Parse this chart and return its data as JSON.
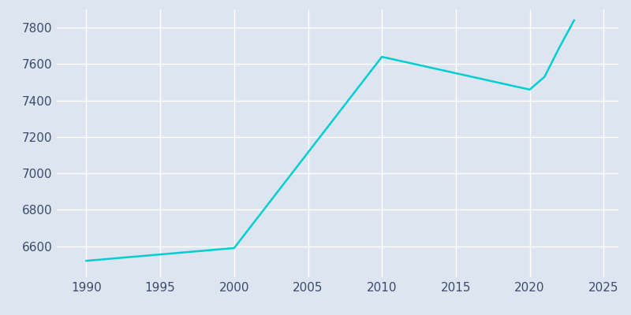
{
  "years": [
    1990,
    2000,
    2010,
    2020,
    2021,
    2022,
    2023
  ],
  "population": [
    6520,
    6590,
    7640,
    7460,
    7530,
    7690,
    7840
  ],
  "line_color": "#00CED1",
  "background_color": "#DDE5F0",
  "plot_bg_color": "#DDE5F0",
  "grid_color": "#FFFFFF",
  "tick_color": "#3A4B6B",
  "xlim": [
    1988,
    2026
  ],
  "ylim": [
    6430,
    7900
  ],
  "yticks": [
    6600,
    6800,
    7000,
    7200,
    7400,
    7600,
    7800
  ],
  "xticks": [
    1990,
    1995,
    2000,
    2005,
    2010,
    2015,
    2020,
    2025
  ],
  "linewidth": 1.8,
  "tick_fontsize": 11
}
